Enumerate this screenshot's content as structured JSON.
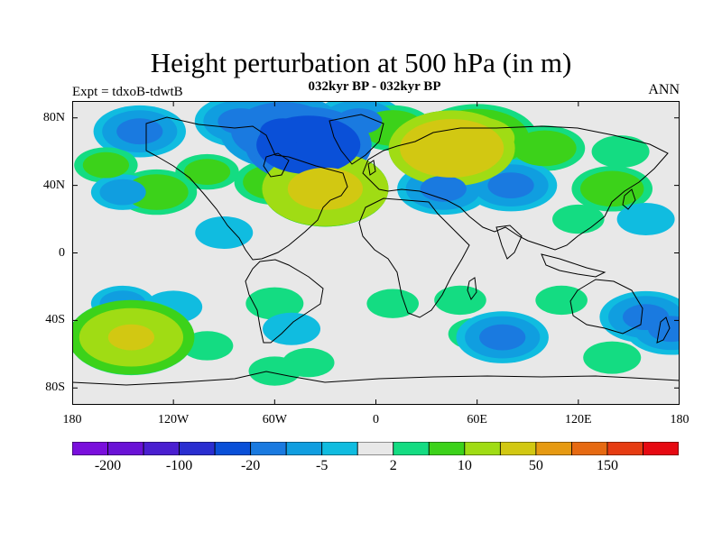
{
  "title": "Height perturbation at 500 hPa (in m)",
  "subtitle": "032kyr BP - 032kyr BP",
  "left_label": "Expt = tdxoB-tdwtB",
  "right_label": "ANN",
  "map": {
    "background_color": "#e8e8e8",
    "lat_ticks": [
      {
        "lat": 80,
        "label": "80N"
      },
      {
        "lat": 40,
        "label": "40N"
      },
      {
        "lat": 0,
        "label": "0"
      },
      {
        "lat": -40,
        "label": "40S"
      },
      {
        "lat": -80,
        "label": "80S"
      }
    ],
    "lon_ticks": [
      {
        "lon": -180,
        "label": "180"
      },
      {
        "lon": -120,
        "label": "120W"
      },
      {
        "lon": -60,
        "label": "60W"
      },
      {
        "lon": 0,
        "label": "0"
      },
      {
        "lon": 60,
        "label": "60E"
      },
      {
        "lon": 120,
        "label": "120E"
      },
      {
        "lon": 180,
        "label": "180"
      }
    ]
  },
  "colorbar": {
    "colors": [
      "#7a0fdc",
      "#6a12d6",
      "#4a1fd0",
      "#2a2ed0",
      "#0a50d8",
      "#1a7ae0",
      "#109ee0",
      "#10bce0",
      "#e8e8e8",
      "#14dc82",
      "#3cd21a",
      "#a0dc14",
      "#d2c812",
      "#e69a12",
      "#e66a12",
      "#e63c12",
      "#e60a12"
    ],
    "labels": [
      {
        "boundary": 1,
        "text": "-200"
      },
      {
        "boundary": 3,
        "text": "-100"
      },
      {
        "boundary": 5,
        "text": "-20"
      },
      {
        "boundary": 7,
        "text": "-5"
      },
      {
        "boundary": 9,
        "text": "2"
      },
      {
        "boundary": 11,
        "text": "10"
      },
      {
        "boundary": 13,
        "text": "50"
      },
      {
        "boundary": 15,
        "text": "150"
      }
    ]
  },
  "anomalies": [
    {
      "lon": -140,
      "lat": 72,
      "value": -10
    },
    {
      "lon": -80,
      "lat": 78,
      "value": -10
    },
    {
      "lon": -40,
      "lat": 64,
      "value": -30
    },
    {
      "lon": -55,
      "lat": 72,
      "value": -20
    },
    {
      "lon": -10,
      "lat": 78,
      "value": -10
    },
    {
      "lon": 45,
      "lat": 62,
      "value": 30
    },
    {
      "lon": 60,
      "lat": 68,
      "value": 15
    },
    {
      "lon": 10,
      "lat": 74,
      "value": 8
    },
    {
      "lon": 100,
      "lat": 62,
      "value": 8
    },
    {
      "lon": 145,
      "lat": 60,
      "value": 4
    },
    {
      "lon": -30,
      "lat": 38,
      "value": 25
    },
    {
      "lon": -60,
      "lat": 42,
      "value": 8
    },
    {
      "lon": -160,
      "lat": 52,
      "value": 5
    },
    {
      "lon": -130,
      "lat": 36,
      "value": 8
    },
    {
      "lon": -150,
      "lat": 36,
      "value": -5
    },
    {
      "lon": -100,
      "lat": 48,
      "value": 5
    },
    {
      "lon": 40,
      "lat": 38,
      "value": -10
    },
    {
      "lon": 80,
      "lat": 40,
      "value": -10
    },
    {
      "lon": 140,
      "lat": 38,
      "value": 8
    },
    {
      "lon": 120,
      "lat": 20,
      "value": 3
    },
    {
      "lon": 160,
      "lat": 20,
      "value": -4
    },
    {
      "lon": -90,
      "lat": 12,
      "value": -4
    },
    {
      "lon": -150,
      "lat": -30,
      "value": -5
    },
    {
      "lon": -120,
      "lat": -32,
      "value": -4
    },
    {
      "lon": -170,
      "lat": -50,
      "value": 5
    },
    {
      "lon": -145,
      "lat": -50,
      "value": 20
    },
    {
      "lon": -100,
      "lat": -55,
      "value": 3
    },
    {
      "lon": -60,
      "lat": -30,
      "value": 4
    },
    {
      "lon": -50,
      "lat": -45,
      "value": -4
    },
    {
      "lon": -40,
      "lat": -65,
      "value": 3
    },
    {
      "lon": 10,
      "lat": -30,
      "value": 3
    },
    {
      "lon": 50,
      "lat": -28,
      "value": 3
    },
    {
      "lon": 60,
      "lat": -48,
      "value": 4
    },
    {
      "lon": 75,
      "lat": -50,
      "value": -10
    },
    {
      "lon": 110,
      "lat": -28,
      "value": 3
    },
    {
      "lon": 160,
      "lat": -38,
      "value": -10
    },
    {
      "lon": 175,
      "lat": -45,
      "value": -10
    },
    {
      "lon": 140,
      "lat": -62,
      "value": 4
    },
    {
      "lon": -60,
      "lat": -70,
      "value": 3
    }
  ]
}
